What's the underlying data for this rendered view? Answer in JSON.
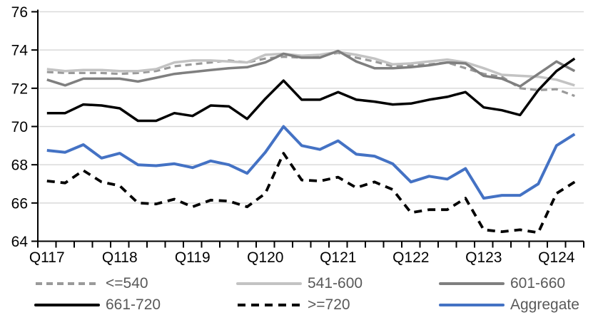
{
  "chart_data": {
    "type": "line",
    "title": "",
    "xlabel": "",
    "ylabel": "",
    "ylim": [
      64,
      76
    ],
    "y_ticks": [
      64,
      66,
      68,
      70,
      72,
      74,
      76
    ],
    "grid": "horizontal",
    "legend_position": "bottom",
    "x_axis_labels": [
      "Q117",
      "Q118",
      "Q119",
      "Q120",
      "Q121",
      "Q122",
      "Q123",
      "Q124"
    ],
    "x_categories": [
      "Q1 2017",
      "Q2 2017",
      "Q3 2017",
      "Q4 2017",
      "Q1 2018",
      "Q2 2018",
      "Q3 2018",
      "Q4 2018",
      "Q1 2019",
      "Q2 2019",
      "Q3 2019",
      "Q4 2019",
      "Q1 2020",
      "Q2 2020",
      "Q3 2020",
      "Q4 2020",
      "Q1 2021",
      "Q2 2021",
      "Q3 2021",
      "Q4 2021",
      "Q1 2022",
      "Q2 2022",
      "Q3 2022",
      "Q4 2022",
      "Q1 2023",
      "Q2 2023",
      "Q3 2023",
      "Q4 2023",
      "Q1 2024",
      "Q2 2024"
    ],
    "series": [
      {
        "key": "lte-540",
        "name": "<=540",
        "color": "#9a9a9a",
        "dash": "9 6",
        "width": 3.2,
        "values": [
          72.85,
          72.8,
          72.8,
          72.8,
          72.75,
          72.8,
          72.9,
          73.15,
          73.25,
          73.35,
          73.45,
          73.35,
          73.55,
          73.65,
          73.6,
          73.7,
          73.85,
          73.6,
          73.4,
          73.15,
          73.2,
          73.25,
          73.35,
          73.05,
          72.75,
          72.6,
          72.0,
          71.9,
          71.95,
          71.6
        ]
      },
      {
        "key": "541-600",
        "name": "541-600",
        "color": "#c3c3c3",
        "dash": null,
        "width": 3.5,
        "values": [
          73.0,
          72.9,
          72.95,
          72.95,
          72.9,
          72.9,
          73.0,
          73.35,
          73.45,
          73.45,
          73.4,
          73.35,
          73.75,
          73.8,
          73.7,
          73.75,
          73.9,
          73.75,
          73.55,
          73.25,
          73.3,
          73.4,
          73.5,
          73.35,
          73.05,
          72.7,
          72.65,
          72.6,
          72.45,
          72.15
        ]
      },
      {
        "key": "601-660",
        "name": "601-660",
        "color": "#7f7f7f",
        "dash": null,
        "width": 3.5,
        "values": [
          72.45,
          72.15,
          72.5,
          72.5,
          72.5,
          72.35,
          72.55,
          72.75,
          72.85,
          72.95,
          73.05,
          73.1,
          73.35,
          73.8,
          73.6,
          73.6,
          73.95,
          73.4,
          73.05,
          73.05,
          73.1,
          73.2,
          73.35,
          73.3,
          72.65,
          72.5,
          72.1,
          72.75,
          73.4,
          72.9
        ]
      },
      {
        "key": "661-720",
        "name": "661-720",
        "color": "#000000",
        "dash": null,
        "width": 3.5,
        "values": [
          70.7,
          70.7,
          71.15,
          71.1,
          70.95,
          70.3,
          70.3,
          70.7,
          70.55,
          71.1,
          71.05,
          70.4,
          71.45,
          72.4,
          71.4,
          71.4,
          71.8,
          71.4,
          71.3,
          71.15,
          71.2,
          71.4,
          71.55,
          71.8,
          71.0,
          70.85,
          70.6,
          71.9,
          72.9,
          73.55
        ]
      },
      {
        "key": "gte-720",
        "name": ">=720",
        "color": "#000000",
        "dash": "11 8",
        "width": 3.8,
        "values": [
          67.15,
          67.05,
          67.7,
          67.1,
          66.9,
          66.0,
          65.95,
          66.2,
          65.8,
          66.15,
          66.1,
          65.8,
          66.5,
          68.6,
          67.2,
          67.15,
          67.35,
          66.8,
          67.1,
          66.7,
          65.5,
          65.65,
          65.65,
          66.25,
          64.6,
          64.5,
          64.6,
          64.45,
          66.5,
          67.1
        ]
      },
      {
        "key": "aggregate",
        "name": "Aggregate",
        "color": "#4472c4",
        "dash": null,
        "width": 4,
        "values": [
          68.75,
          68.65,
          69.05,
          68.35,
          68.6,
          68.0,
          67.95,
          68.05,
          67.85,
          68.2,
          68.0,
          67.55,
          68.65,
          70.0,
          69.0,
          68.8,
          69.25,
          68.55,
          68.45,
          68.05,
          67.1,
          67.4,
          67.25,
          67.8,
          66.25,
          66.4,
          66.4,
          67.0,
          69.0,
          69.6
        ]
      }
    ]
  },
  "colors": {
    "background": "#ffffff",
    "gridline": "#d9d9d9",
    "axis": "#000000",
    "tick_label": "#000000",
    "legend_text": "#595959"
  }
}
